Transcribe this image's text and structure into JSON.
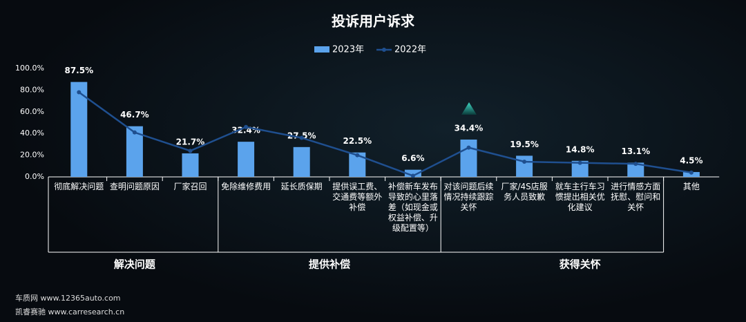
{
  "chart_data": {
    "type": "bar-line",
    "title": "投诉用户诉求",
    "categories": [
      "彻底解决问题",
      "查明问题原因",
      "厂家召回",
      "免除维修费用",
      "延长质保期",
      "提供误工费、交通费等额外补偿",
      "补偿新车发布导致的心里落差（如现金或权益补偿、升级配置等）",
      "对该问题后续情况持续跟踪关怀",
      "厂家/4S店服务人员致歉",
      "就车主行车习惯提出相关优化建议",
      "进行情感方面抚慰、慰问和关怀",
      "其他"
    ],
    "groups": [
      {
        "name": "解决问题",
        "size": 3
      },
      {
        "name": "提供补偿",
        "size": 4
      },
      {
        "name": "获得关怀",
        "size": 5
      }
    ],
    "series": [
      {
        "name": "2023年",
        "type": "bar",
        "color": "#5ba3ec",
        "values": [
          87.5,
          46.7,
          21.7,
          32.4,
          27.5,
          22.5,
          6.6,
          34.4,
          19.5,
          14.8,
          13.1,
          4.5
        ],
        "value_labels": [
          "87.5%",
          "46.7%",
          "21.7%",
          "32.4%",
          "27.5%",
          "22.5%",
          "6.6%",
          "34.4%",
          "19.5%",
          "14.8%",
          "13.1%",
          "4.5%"
        ]
      },
      {
        "name": "2022年",
        "type": "line",
        "color": "#1f4f8f",
        "values": [
          78,
          41,
          24,
          46,
          36,
          20,
          1,
          27,
          14,
          13,
          12,
          4
        ]
      }
    ],
    "ylim": [
      0,
      100
    ],
    "yticks": [
      {
        "value": 0,
        "label": "0.0%"
      },
      {
        "value": 20,
        "label": "20.0%"
      },
      {
        "value": 40,
        "label": "40.0%"
      },
      {
        "value": 60,
        "label": "60.0%"
      },
      {
        "value": 80,
        "label": "80.0%"
      },
      {
        "value": 100,
        "label": "100.0%"
      }
    ],
    "sources": [
      "车质网 www.12365auto.com",
      "凯睿赛驰 www.carresearch.cn"
    ]
  }
}
